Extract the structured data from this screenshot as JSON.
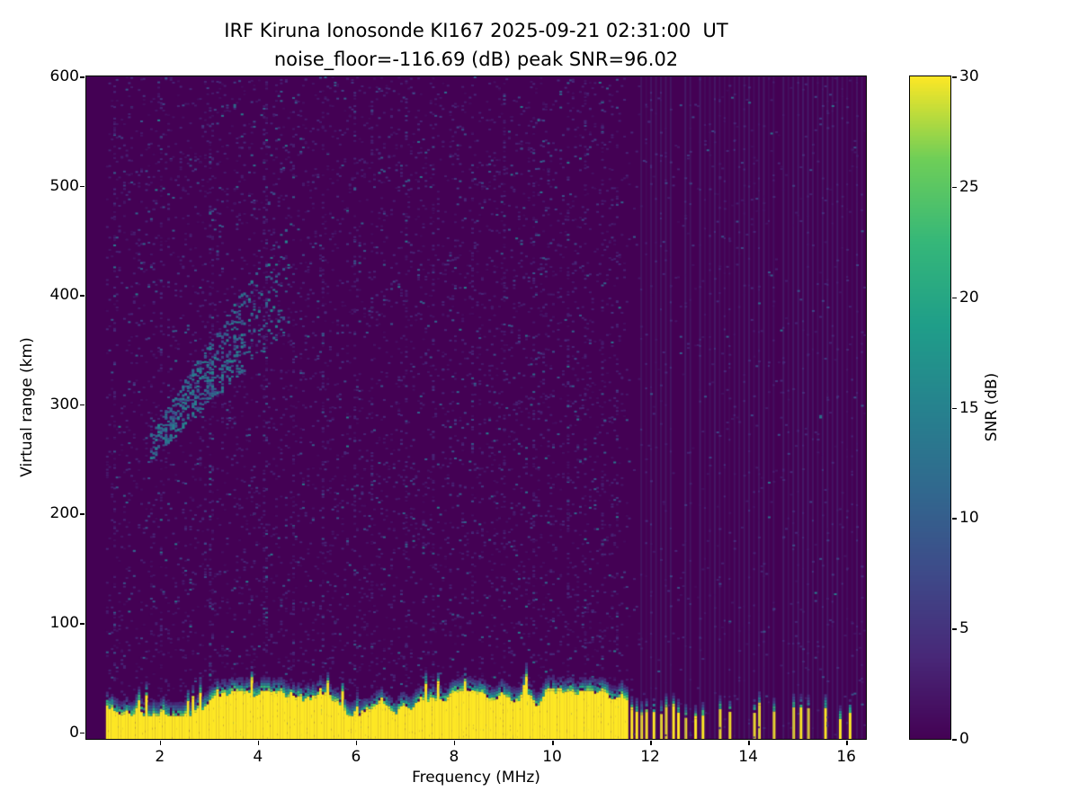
{
  "chart_data": {
    "type": "heatmap",
    "title": "IRF Kiruna Ionosonde KI167 2025-09-21 02:31:00  UT",
    "subtitle": "noise_floor=-116.69 (dB) peak SNR=96.02",
    "xlabel": "Frequency (MHz)",
    "ylabel": "Virtual range (km)",
    "colorbar_label": "SNR (dB)",
    "x_range": [
      0.5,
      16.4
    ],
    "y_range": [
      -6,
      600
    ],
    "color_range": [
      0,
      30
    ],
    "x_ticks": [
      2,
      4,
      6,
      8,
      10,
      12,
      14,
      16
    ],
    "y_ticks": [
      0,
      100,
      200,
      300,
      400,
      500,
      600
    ],
    "colorbar_ticks": [
      0,
      5,
      10,
      15,
      20,
      25,
      30
    ],
    "colormap": "viridis",
    "noise_floor_db": -116.69,
    "peak_snr_db": 96.02,
    "background_snr_db": 0,
    "features": {
      "ground_return": {
        "freq_start": 0.9,
        "freq_end": 11.55,
        "height_km_min": 15,
        "height_km_max": 38,
        "snr_db": 30
      },
      "sparse_ground_stripes_mhz": [
        11.6,
        11.68,
        11.78,
        11.92,
        12.04,
        12.18,
        12.3,
        12.44,
        12.56,
        12.7,
        12.92,
        13.04,
        13.42,
        13.6,
        14.12,
        14.2,
        14.48,
        14.92,
        15.04,
        15.18,
        15.55,
        15.85,
        16.05
      ],
      "ionospheric_echo": {
        "freq_start": 1.8,
        "freq_end": 4.6,
        "range_start_km": 262,
        "range_end_km": 420,
        "snr_db_min": 7,
        "snr_db_max": 16
      },
      "rfi_columns_mhz": [
        1.05,
        2.0,
        3.02,
        4.12,
        4.7,
        5.3,
        5.95,
        6.3,
        7.0,
        7.55,
        8.35,
        9.0,
        9.6,
        10.3,
        10.65,
        11.0,
        11.3
      ],
      "faint_stripe_band_mhz": [
        11.8,
        16.35
      ]
    },
    "viridis_stops": [
      [
        0,
        68,
        1,
        84
      ],
      [
        0.125,
        72,
        40,
        120
      ],
      [
        0.25,
        62,
        74,
        137
      ],
      [
        0.375,
        49,
        104,
        142
      ],
      [
        0.5,
        38,
        130,
        142
      ],
      [
        0.625,
        31,
        158,
        137
      ],
      [
        0.75,
        53,
        183,
        121
      ],
      [
        0.875,
        110,
        206,
        88
      ],
      [
        1,
        253,
        231,
        37
      ]
    ]
  }
}
